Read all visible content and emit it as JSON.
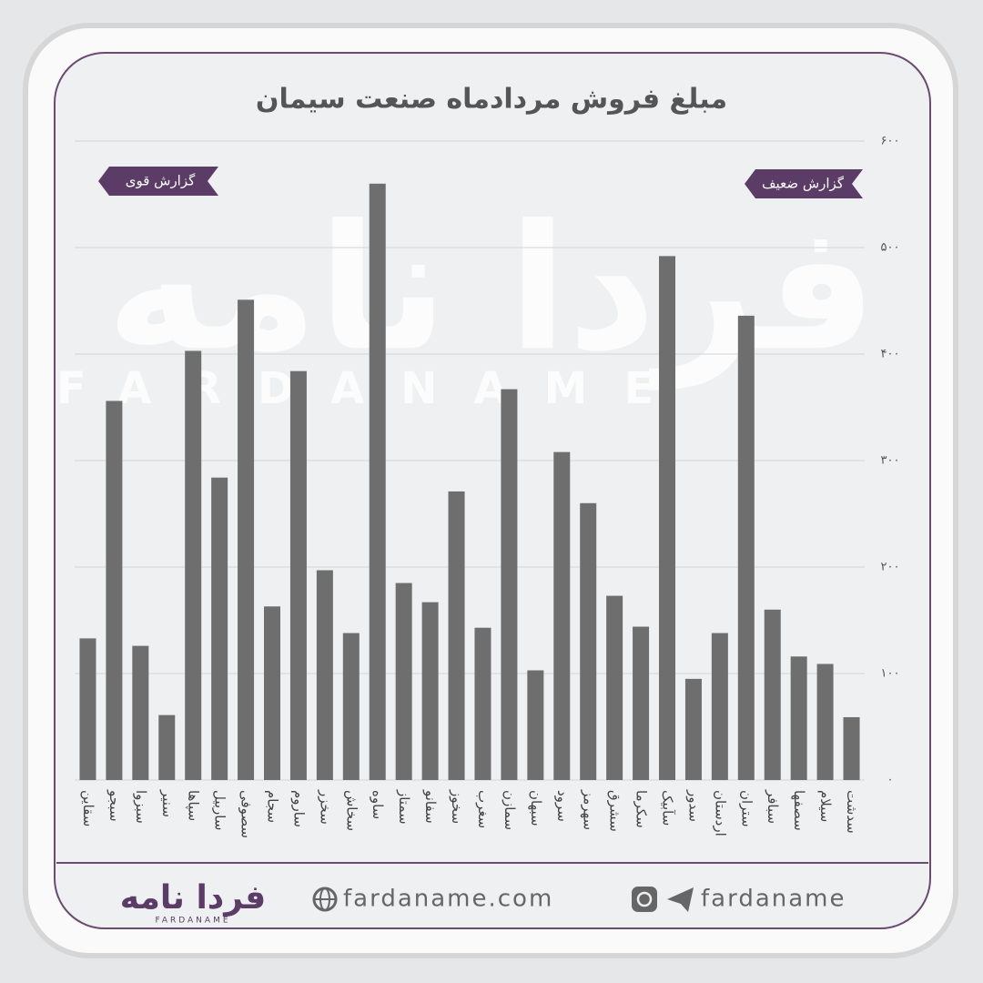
{
  "chart_data": {
    "type": "bar",
    "title": "مبلغ فروش مردادماه صنعت سیمان",
    "annotations": [
      "گزارش قوی",
      "گزارش ضعیف"
    ],
    "categories": [
      "سقاین",
      "سبجو",
      "سبزوا",
      "سنیر",
      "سپاها",
      "ساربیل",
      "سصوفی",
      "سجام",
      "ساروم",
      "سخزر",
      "سخاش",
      "ساوه",
      "سمتاز",
      "سفانو",
      "سخوز",
      "سغرب",
      "سمازن",
      "سبهان",
      "سرود",
      "سهرمز",
      "سشرق",
      "سکرما",
      "سآبیک",
      "سدور",
      "اردستان",
      "ستران",
      "سبافر",
      "سصفها",
      "سیلام",
      "سدشت"
    ],
    "values": [
      133,
      356,
      126,
      61,
      403,
      284,
      451,
      163,
      384,
      197,
      138,
      560,
      185,
      167,
      271,
      143,
      367,
      103,
      308,
      260,
      173,
      144,
      492,
      95,
      138,
      436,
      160,
      116,
      109,
      59
    ],
    "color": "#6e6e6e",
    "ylim": [
      0,
      600
    ],
    "yticks": [
      {
        "value": 0,
        "label": "۰"
      },
      {
        "value": 100,
        "label": "۱۰۰"
      },
      {
        "value": 200,
        "label": "۲۰۰"
      },
      {
        "value": 300,
        "label": "۳۰۰"
      },
      {
        "value": 400,
        "label": "۴۰۰"
      },
      {
        "value": 500,
        "label": "۵۰۰"
      },
      {
        "value": 600,
        "label": "۶۰۰"
      }
    ],
    "grid": true
  },
  "watermark": {
    "logo": "فردا نامه",
    "latin": "FARDANAME"
  },
  "footer": {
    "logo": "فردا نامه",
    "logo_latin": "FARDANAME",
    "website": "fardaname.com",
    "social": "fardaname"
  }
}
